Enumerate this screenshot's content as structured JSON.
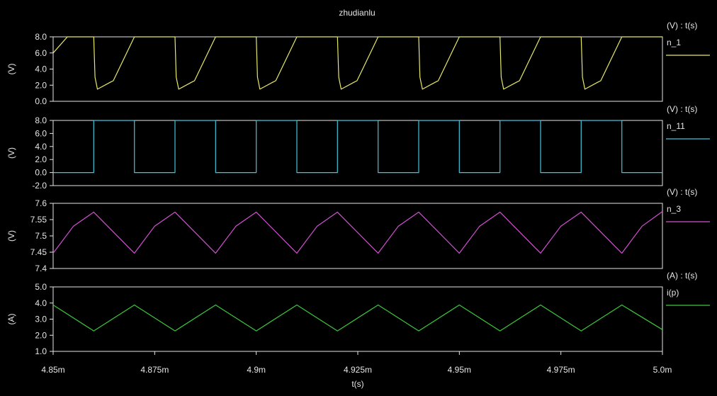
{
  "window": {
    "title": "zhudianlu"
  },
  "chart_data": [
    {
      "type": "line",
      "ylabel": "(V)",
      "legend_header": "(V) : t(s)",
      "ylim": [
        0,
        8
      ],
      "yticks": [
        "0.0",
        "2.0",
        "4.0",
        "6.0",
        "8.0"
      ],
      "series": [
        {
          "name": "n_1",
          "color": "#e8e86a",
          "x": [
            4.85,
            4.8535,
            4.86,
            4.8603,
            4.8609,
            4.8642,
            4.8648,
            4.87,
            4.87,
            4.8706,
            4.875,
            4.88,
            4.8803,
            4.8809,
            4.8842,
            4.8848,
            4.89,
            4.89,
            4.8906,
            4.895,
            4.9,
            4.9003,
            4.9009,
            4.9042,
            4.9048,
            4.91,
            4.91,
            4.9106,
            4.915,
            4.92,
            4.9203,
            4.9209,
            4.9242,
            4.9248,
            4.93,
            4.93,
            4.9306,
            4.935,
            4.94,
            4.9403,
            4.9409,
            4.9442,
            4.9448,
            4.95,
            4.95,
            4.9506,
            4.955,
            4.96,
            4.9603,
            4.9609,
            4.9642,
            4.9648,
            4.97,
            4.97,
            4.9706,
            4.975,
            4.98,
            4.9803,
            4.9809,
            4.9842,
            4.9848,
            4.99,
            4.99,
            4.9906,
            4.995,
            5.0
          ],
          "y": [
            6.0,
            8.0,
            8.0,
            3.0,
            1.5,
            2.4,
            2.55,
            8.0,
            8.0,
            8.0,
            8.0,
            8.0,
            3.0,
            1.5,
            2.4,
            2.55,
            8.0,
            8.0,
            8.0,
            8.0,
            8.0,
            3.0,
            1.5,
            2.4,
            2.55,
            8.0,
            8.0,
            8.0,
            8.0,
            8.0,
            3.0,
            1.5,
            2.4,
            2.55,
            8.0,
            8.0,
            8.0,
            8.0,
            8.0,
            3.0,
            1.5,
            2.4,
            2.55,
            8.0,
            8.0,
            8.0,
            8.0,
            8.0,
            3.0,
            1.5,
            2.4,
            2.55,
            8.0,
            8.0,
            8.0,
            8.0,
            8.0,
            3.0,
            1.5,
            2.4,
            2.55,
            8.0,
            8.0,
            8.0,
            8.0,
            8.0
          ]
        }
      ]
    },
    {
      "type": "line",
      "ylabel": "(V)",
      "legend_header": "(V) : t(s)",
      "ylim": [
        -2,
        8
      ],
      "yticks": [
        "-2.0",
        "0.0",
        "2.0",
        "4.0",
        "6.0",
        "8.0"
      ],
      "series": [
        {
          "name": "n_11",
          "color": "#3fc6df",
          "x": [
            4.85,
            4.86,
            4.86,
            4.87,
            4.87,
            4.88,
            4.88,
            4.89,
            4.89,
            4.9,
            4.9,
            4.91,
            4.91,
            4.92,
            4.92,
            4.93,
            4.93,
            4.94,
            4.94,
            4.95,
            4.95,
            4.96,
            4.96,
            4.97,
            4.97,
            4.98,
            4.98,
            4.99,
            4.99,
            5.0
          ],
          "y": [
            0,
            0,
            8,
            8,
            0,
            0,
            8,
            8,
            0,
            0,
            8,
            8,
            0,
            0,
            8,
            8,
            0,
            0,
            8,
            8,
            0,
            0,
            8,
            8,
            0,
            0,
            8,
            8,
            0,
            0
          ]
        }
      ]
    },
    {
      "type": "line",
      "ylabel": "(V)",
      "legend_header": "(V) : t(s)",
      "ylim": [
        7.4,
        7.6
      ],
      "yticks": [
        "7.4",
        "7.45",
        "7.5",
        "7.55",
        "7.6"
      ],
      "series": [
        {
          "name": "n_3",
          "color": "#d44fd4",
          "x": [
            4.85,
            4.855,
            4.86,
            4.87,
            4.875,
            4.88,
            4.89,
            4.895,
            4.9,
            4.91,
            4.915,
            4.92,
            4.93,
            4.935,
            4.94,
            4.95,
            4.955,
            4.96,
            4.97,
            4.975,
            4.98,
            4.99,
            4.995,
            5.0
          ],
          "y": [
            7.447,
            7.53,
            7.573,
            7.447,
            7.53,
            7.573,
            7.447,
            7.53,
            7.573,
            7.447,
            7.53,
            7.573,
            7.447,
            7.53,
            7.573,
            7.447,
            7.53,
            7.573,
            7.447,
            7.53,
            7.573,
            7.447,
            7.53,
            7.575
          ]
        }
      ]
    },
    {
      "type": "line",
      "ylabel": "(A)",
      "legend_header": "(A) : t(s)",
      "ylim": [
        1.0,
        5.0
      ],
      "yticks": [
        "1.0",
        "2.0",
        "3.0",
        "4.0",
        "5.0"
      ],
      "xlabel": "t(s)",
      "xticks": [
        "4.85m",
        "4.875m",
        "4.9m",
        "4.925m",
        "4.95m",
        "4.975m",
        "5.0m"
      ],
      "xlim": [
        4.85,
        5.0
      ],
      "series": [
        {
          "name": "i(p)",
          "color": "#3cc83c",
          "x": [
            4.85,
            4.86,
            4.87,
            4.88,
            4.89,
            4.9,
            4.91,
            4.92,
            4.93,
            4.94,
            4.95,
            4.96,
            4.97,
            4.98,
            4.99,
            5.0
          ],
          "y": [
            3.88,
            2.27,
            3.88,
            2.27,
            3.88,
            2.27,
            3.88,
            2.27,
            3.88,
            2.27,
            3.88,
            2.27,
            3.88,
            2.27,
            3.88,
            2.35
          ]
        }
      ]
    }
  ]
}
